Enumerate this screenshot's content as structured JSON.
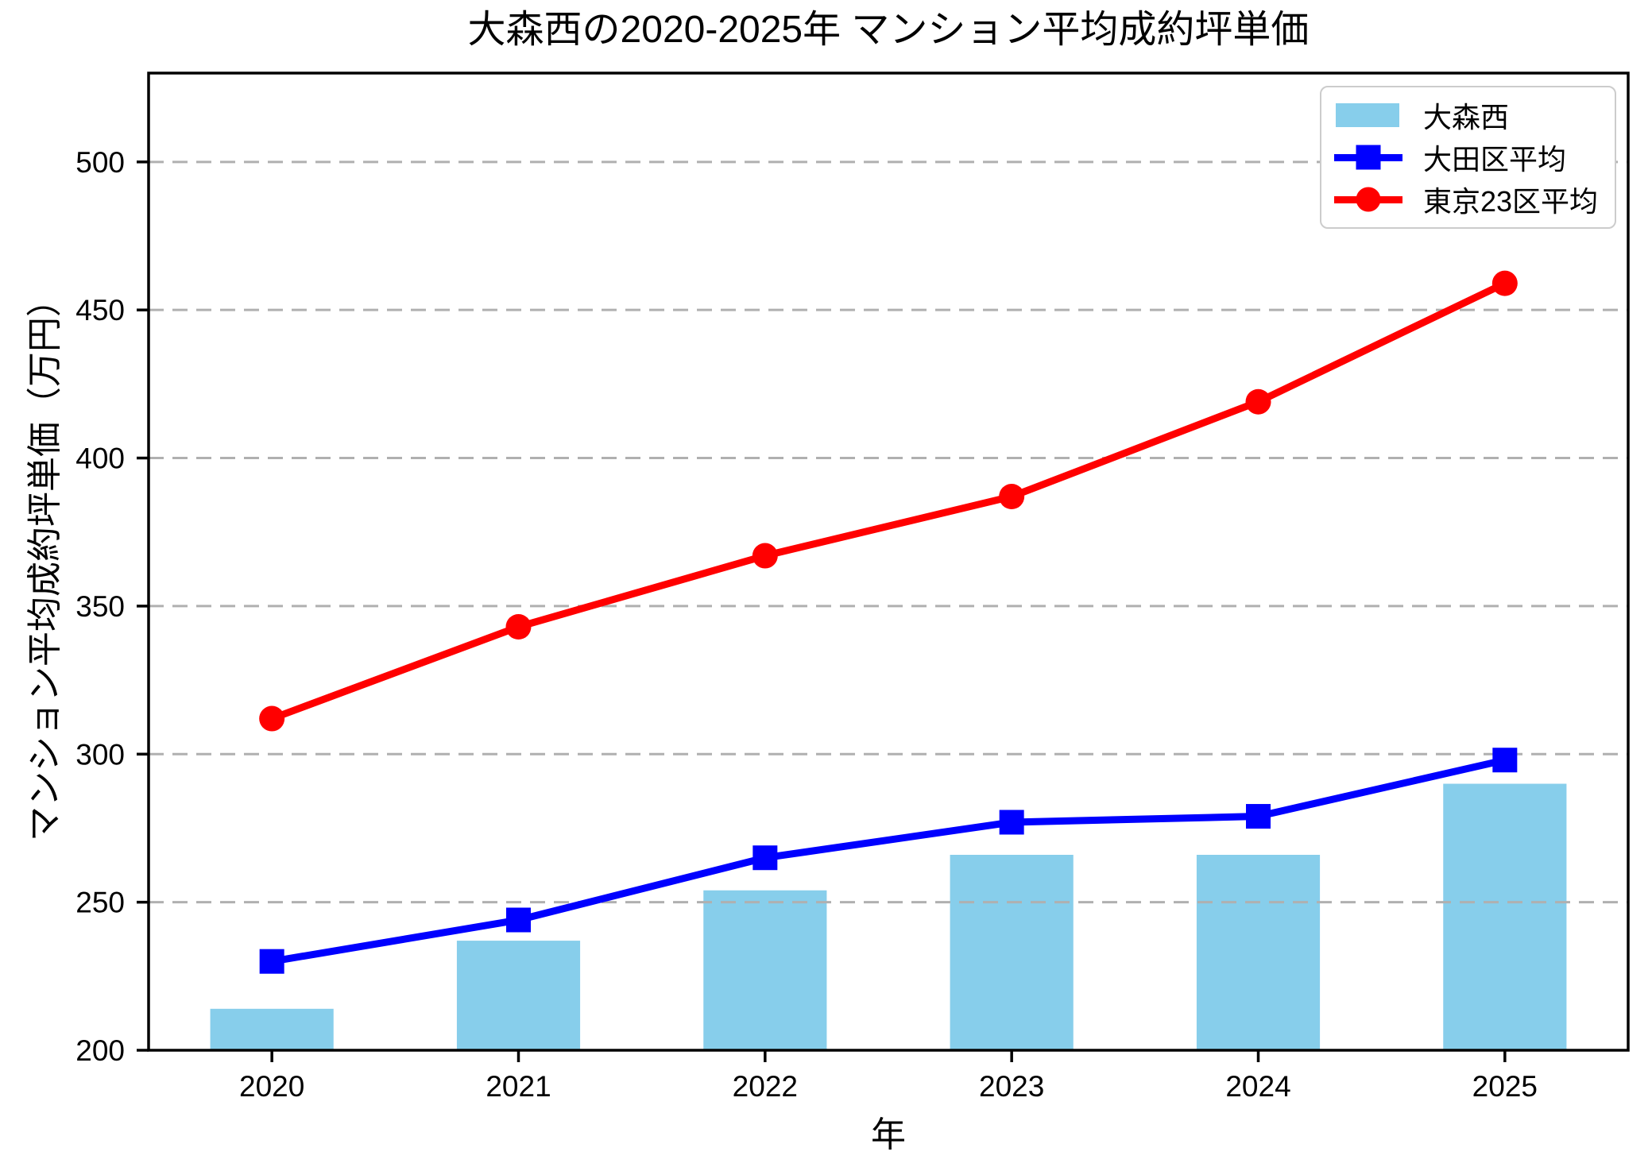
{
  "chart_data": {
    "type": "bar",
    "title": "大森西の2020-2025年 マンション平均成約坪単価",
    "xlabel": "年",
    "ylabel": "マンション平均成約坪単価（万円）",
    "categories": [
      "2020",
      "2021",
      "2022",
      "2023",
      "2024",
      "2025"
    ],
    "series": [
      {
        "name": "大森西",
        "type": "bar",
        "marker": "none",
        "color": "#87CEEB",
        "values": [
          214,
          237,
          254,
          266,
          266,
          290
        ]
      },
      {
        "name": "大田区平均",
        "type": "line",
        "marker": "square",
        "color": "#0000FF",
        "values": [
          230,
          244,
          265,
          277,
          279,
          298
        ]
      },
      {
        "name": "東京23区平均",
        "type": "line",
        "marker": "circle",
        "color": "#FF0000",
        "values": [
          312,
          343,
          367,
          387,
          419,
          459
        ]
      }
    ],
    "ylim": [
      200,
      530
    ],
    "yticks": [
      200,
      250,
      300,
      350,
      400,
      450,
      500
    ],
    "grid": "horizontal-dashed",
    "grid_color": "#b0b0b0",
    "axis_color": "#000000",
    "background_color": "#ffffff",
    "legend_position": "upper-right"
  }
}
